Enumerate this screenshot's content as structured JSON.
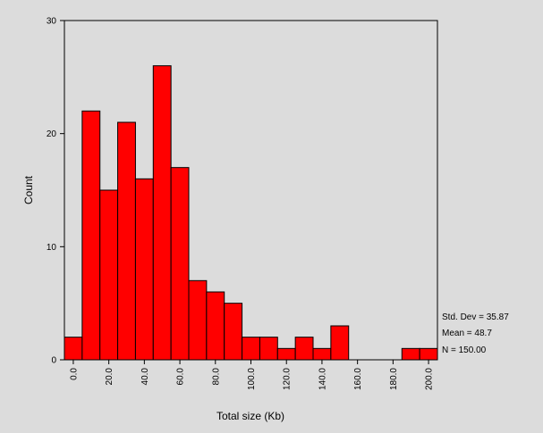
{
  "chart_data": {
    "type": "bar",
    "subtype": "histogram",
    "bin_width": 10,
    "bins": [
      {
        "center": 0,
        "count": 2
      },
      {
        "center": 10,
        "count": 22
      },
      {
        "center": 20,
        "count": 15
      },
      {
        "center": 30,
        "count": 21
      },
      {
        "center": 40,
        "count": 16
      },
      {
        "center": 50,
        "count": 26
      },
      {
        "center": 60,
        "count": 17
      },
      {
        "center": 70,
        "count": 7
      },
      {
        "center": 80,
        "count": 6
      },
      {
        "center": 90,
        "count": 5
      },
      {
        "center": 100,
        "count": 2
      },
      {
        "center": 110,
        "count": 2
      },
      {
        "center": 120,
        "count": 1
      },
      {
        "center": 130,
        "count": 2
      },
      {
        "center": 140,
        "count": 1
      },
      {
        "center": 150,
        "count": 3
      },
      {
        "center": 160,
        "count": 0
      },
      {
        "center": 170,
        "count": 0
      },
      {
        "center": 180,
        "count": 0
      },
      {
        "center": 190,
        "count": 1
      },
      {
        "center": 200,
        "count": 1
      }
    ],
    "xlabel": "Total size (Kb)",
    "ylabel": "Count",
    "xlim": [
      -5,
      205
    ],
    "ylim": [
      0,
      30
    ],
    "x_ticks": [
      "0.0",
      "20.0",
      "40.0",
      "60.0",
      "80.0",
      "100.0",
      "120.0",
      "140.0",
      "160.0",
      "180.0",
      "200.0"
    ],
    "y_ticks": [
      "0",
      "10",
      "20",
      "30"
    ],
    "grid": false,
    "bar_color": "#ff0000",
    "stats": {
      "std_dev": "Std. Dev = 35.87",
      "mean": "Mean = 48.7",
      "n": "N = 150.00"
    }
  }
}
